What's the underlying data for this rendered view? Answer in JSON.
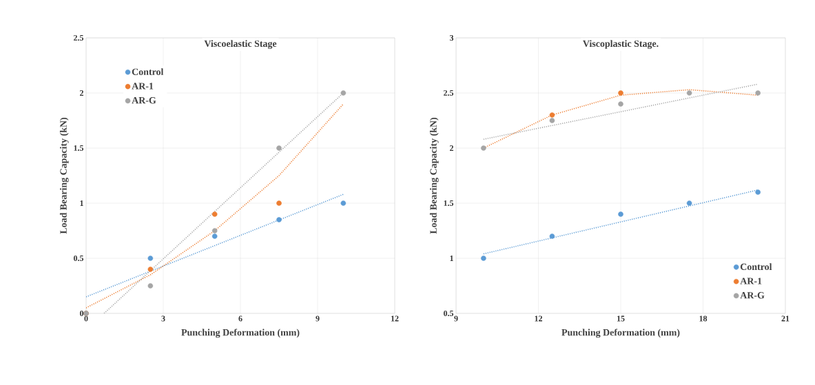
{
  "chart_data": [
    {
      "type": "scatter",
      "title": "Viscoelastic Stage",
      "xlabel": "Punching Deformation  (mm)",
      "ylabel": "Load Bearing Capacity (kN)",
      "xlim": [
        0,
        12
      ],
      "xticks": [
        0,
        3,
        6,
        9,
        12
      ],
      "ylim": [
        0,
        2.5
      ],
      "yticks": [
        0,
        0.5,
        1,
        1.5,
        2,
        2.5
      ],
      "grid": true,
      "legend": "top left",
      "series": [
        {
          "name": "Control",
          "color": "#5b9bd5",
          "marker": "circle",
          "x": [
            0,
            2.5,
            5,
            7.5,
            10
          ],
          "values": [
            0,
            0.5,
            0.7,
            0.85,
            1
          ]
        },
        {
          "name": "AR-1",
          "color": "#ed7d31",
          "marker": "circle",
          "x": [
            0,
            2.5,
            5,
            7.5
          ],
          "values": [
            0,
            0.4,
            0.9,
            1
          ]
        },
        {
          "name": "AR-G",
          "color": "#a5a5a5",
          "marker": "circle",
          "x": [
            0,
            2.5,
            5,
            7.5,
            10
          ],
          "values": [
            0,
            0.25,
            0.75,
            1.5,
            2
          ]
        },
        {
          "type": "line",
          "color": "#5b9bd5",
          "marker": "none",
          "line_style": "dotted",
          "x": [
            0,
            10
          ],
          "values": [
            0.15,
            1.08
          ]
        },
        {
          "type": "line",
          "color": "#ed7d31",
          "marker": "none",
          "line_style": "dotted",
          "x": [
            0,
            2.5,
            5,
            7.5,
            10
          ],
          "values": [
            0.05,
            0.35,
            0.75,
            1.25,
            1.9
          ]
        },
        {
          "type": "line",
          "color": "#a5a5a5",
          "marker": "none",
          "line_style": "dotted",
          "x": [
            0.7,
            10
          ],
          "values": [
            0,
            2
          ]
        }
      ]
    },
    {
      "type": "scatter",
      "title": "Viscoplastic Stage.",
      "xlabel": "Punching Deformation  (mm)",
      "ylabel": "Load Bearing Capacity (kN)",
      "xlim": [
        9,
        21
      ],
      "xticks": [
        9,
        12,
        15,
        18,
        21
      ],
      "ylim": [
        0.5,
        3
      ],
      "yticks": [
        0.5,
        1,
        1.5,
        2,
        2.5,
        3
      ],
      "grid": true,
      "legend": "bottom right",
      "series": [
        {
          "name": "Control",
          "color": "#5b9bd5",
          "marker": "circle",
          "x": [
            10,
            12.5,
            15,
            17.5,
            20
          ],
          "values": [
            1,
            1.2,
            1.4,
            1.5,
            1.6
          ]
        },
        {
          "name": "AR-1",
          "color": "#ed7d31",
          "marker": "circle",
          "x": [
            12.5,
            15
          ],
          "values": [
            2.3,
            2.5
          ]
        },
        {
          "name": "AR-G",
          "color": "#a5a5a5",
          "marker": "circle",
          "x": [
            10,
            12.5,
            15,
            17.5,
            20
          ],
          "values": [
            2,
            2.25,
            2.4,
            2.5,
            2.5
          ]
        },
        {
          "type": "line",
          "color": "#5b9bd5",
          "marker": "none",
          "line_style": "dotted",
          "x": [
            10,
            20
          ],
          "values": [
            1.04,
            1.62
          ]
        },
        {
          "type": "line",
          "color": "#ed7d31",
          "marker": "none",
          "line_style": "dotted",
          "x": [
            10,
            12.5,
            15,
            17.5,
            20
          ],
          "values": [
            2,
            2.3,
            2.48,
            2.53,
            2.48
          ]
        },
        {
          "type": "line",
          "color": "#a5a5a5",
          "marker": "none",
          "line_style": "dotted",
          "x": [
            10,
            20
          ],
          "values": [
            2.08,
            2.58
          ]
        }
      ]
    }
  ]
}
